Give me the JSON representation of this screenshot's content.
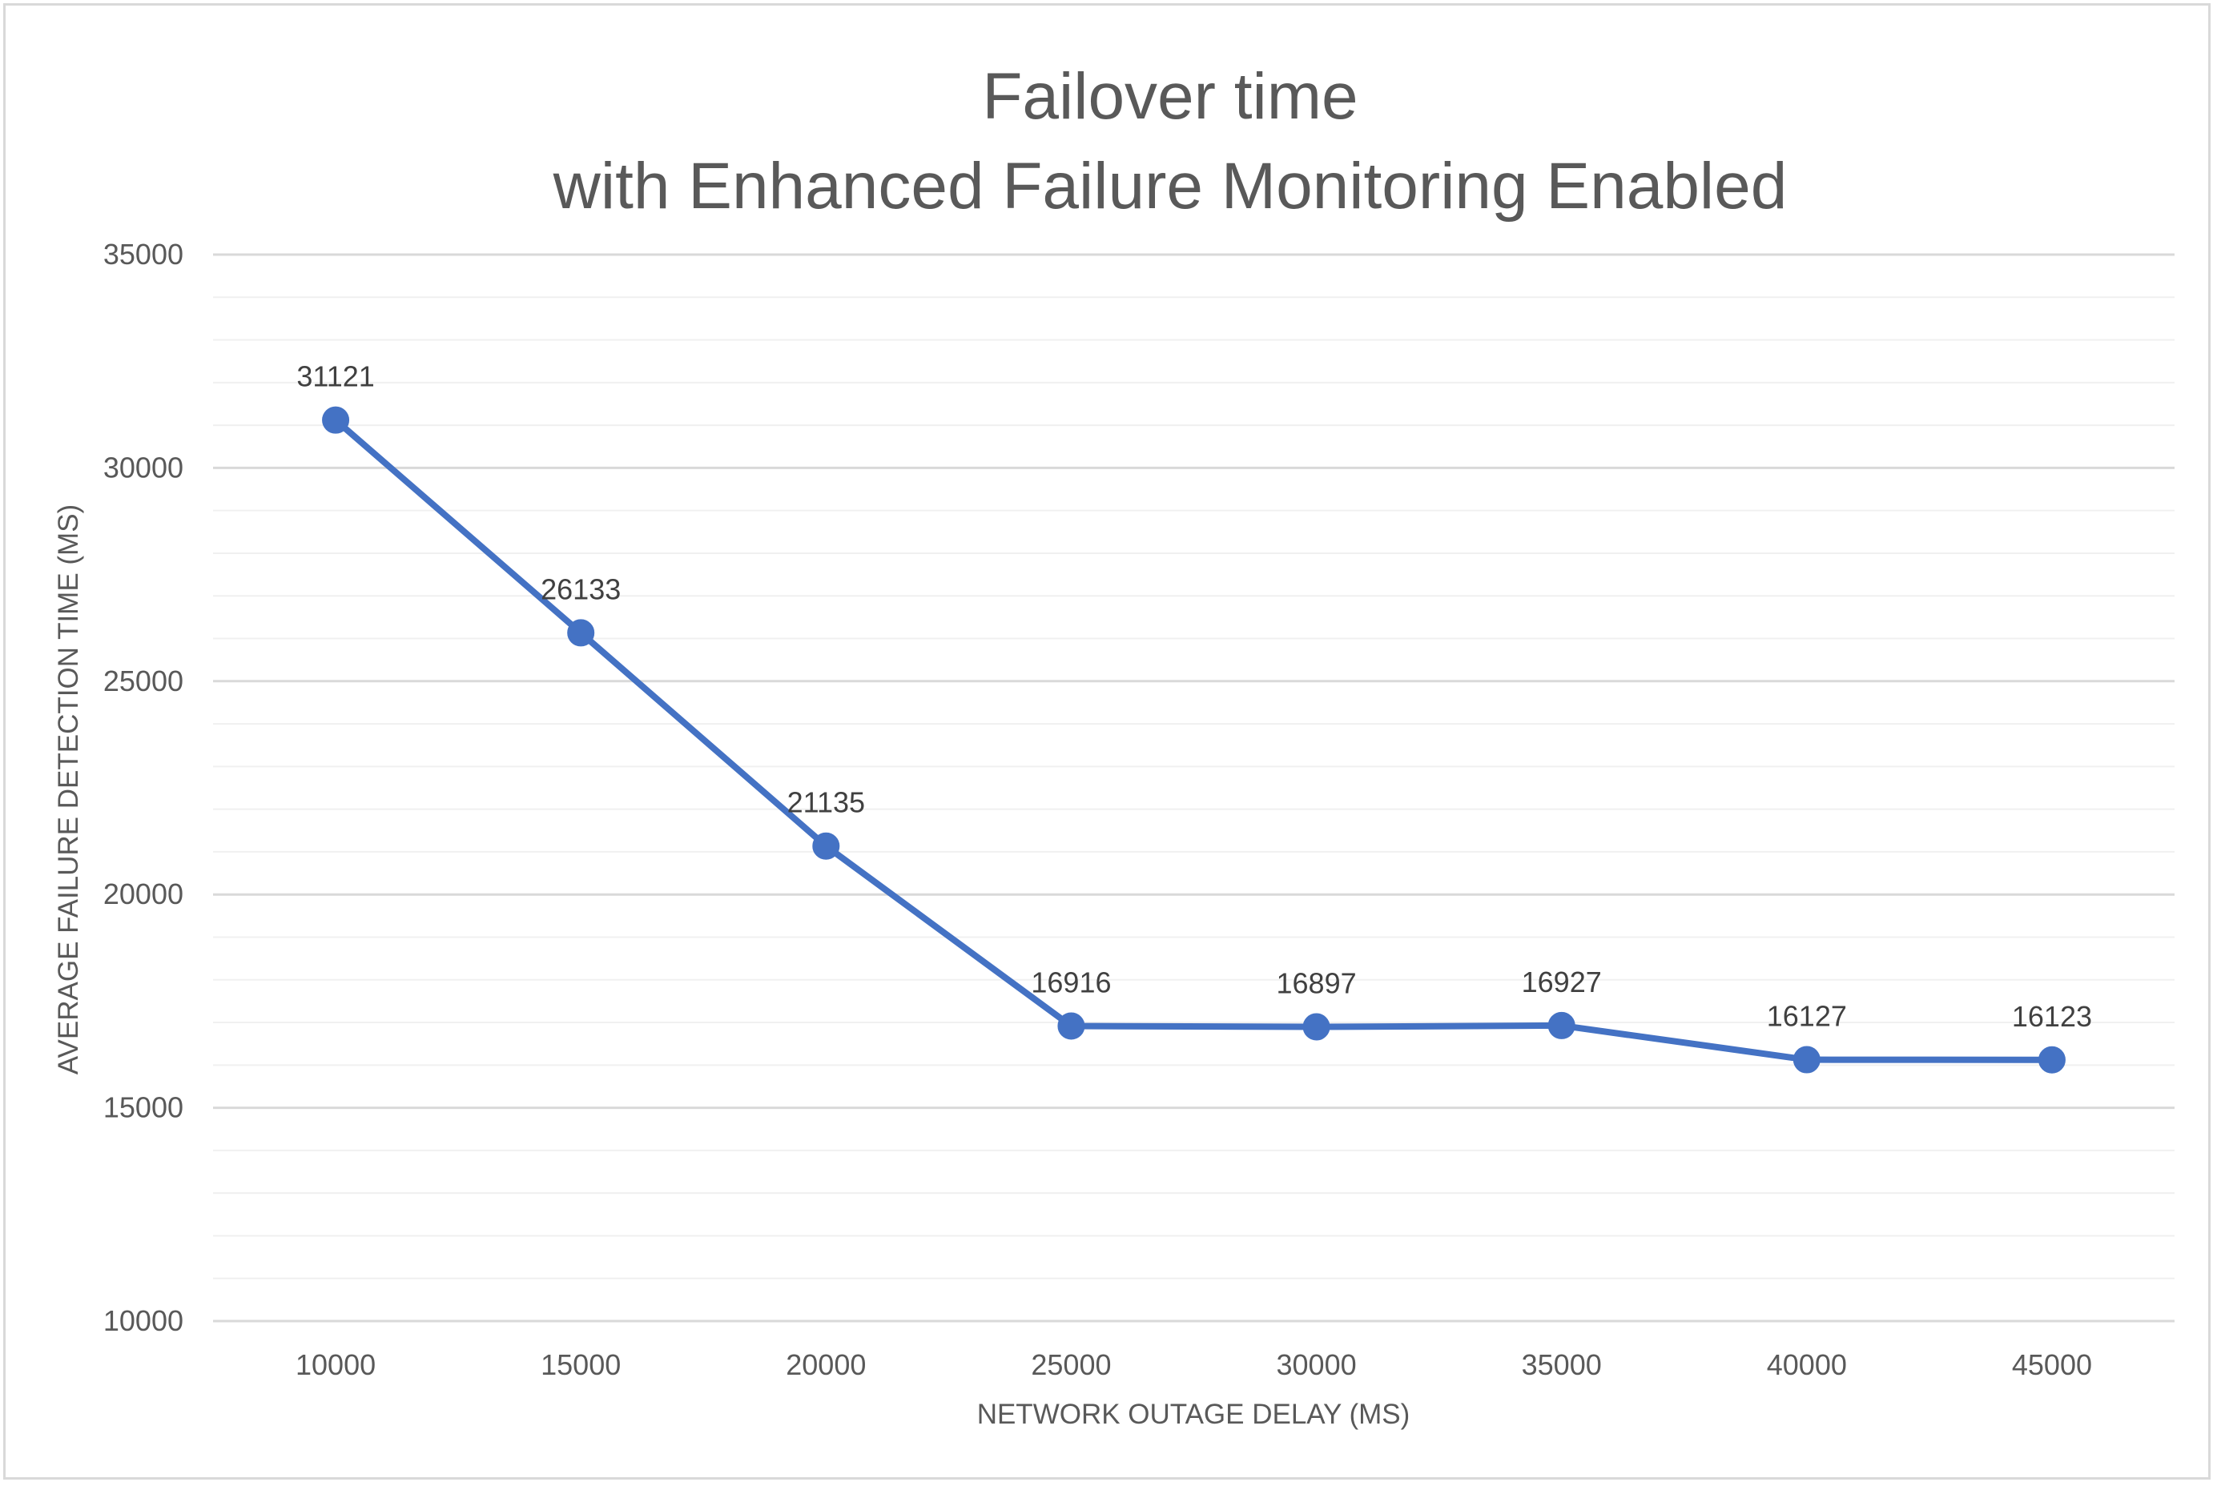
{
  "chart_data": {
    "type": "line",
    "title": [
      "Failover time",
      "with Enhanced Failure Monitoring Enabled"
    ],
    "xlabel": "NETWORK OUTAGE DELAY (MS)",
    "ylabel": "AVERAGE FAILURE DETECTION TIME (MS)",
    "categories": [
      "10000",
      "15000",
      "20000",
      "25000",
      "30000",
      "35000",
      "40000",
      "45000"
    ],
    "series": [
      {
        "values": [
          31121,
          26133,
          21135,
          16916,
          16897,
          16927,
          16127,
          16123
        ]
      }
    ],
    "ylim": [
      10000,
      35000
    ],
    "yticks": [
      10000,
      15000,
      20000,
      25000,
      30000,
      35000
    ],
    "minor_step": 1000,
    "grid": true,
    "data_labels": true,
    "legend": "none",
    "colors": {
      "series": "#4472C4",
      "major_grid": "#d9d9d9",
      "minor_grid": "#f0f0f0",
      "text": "#595959"
    }
  }
}
